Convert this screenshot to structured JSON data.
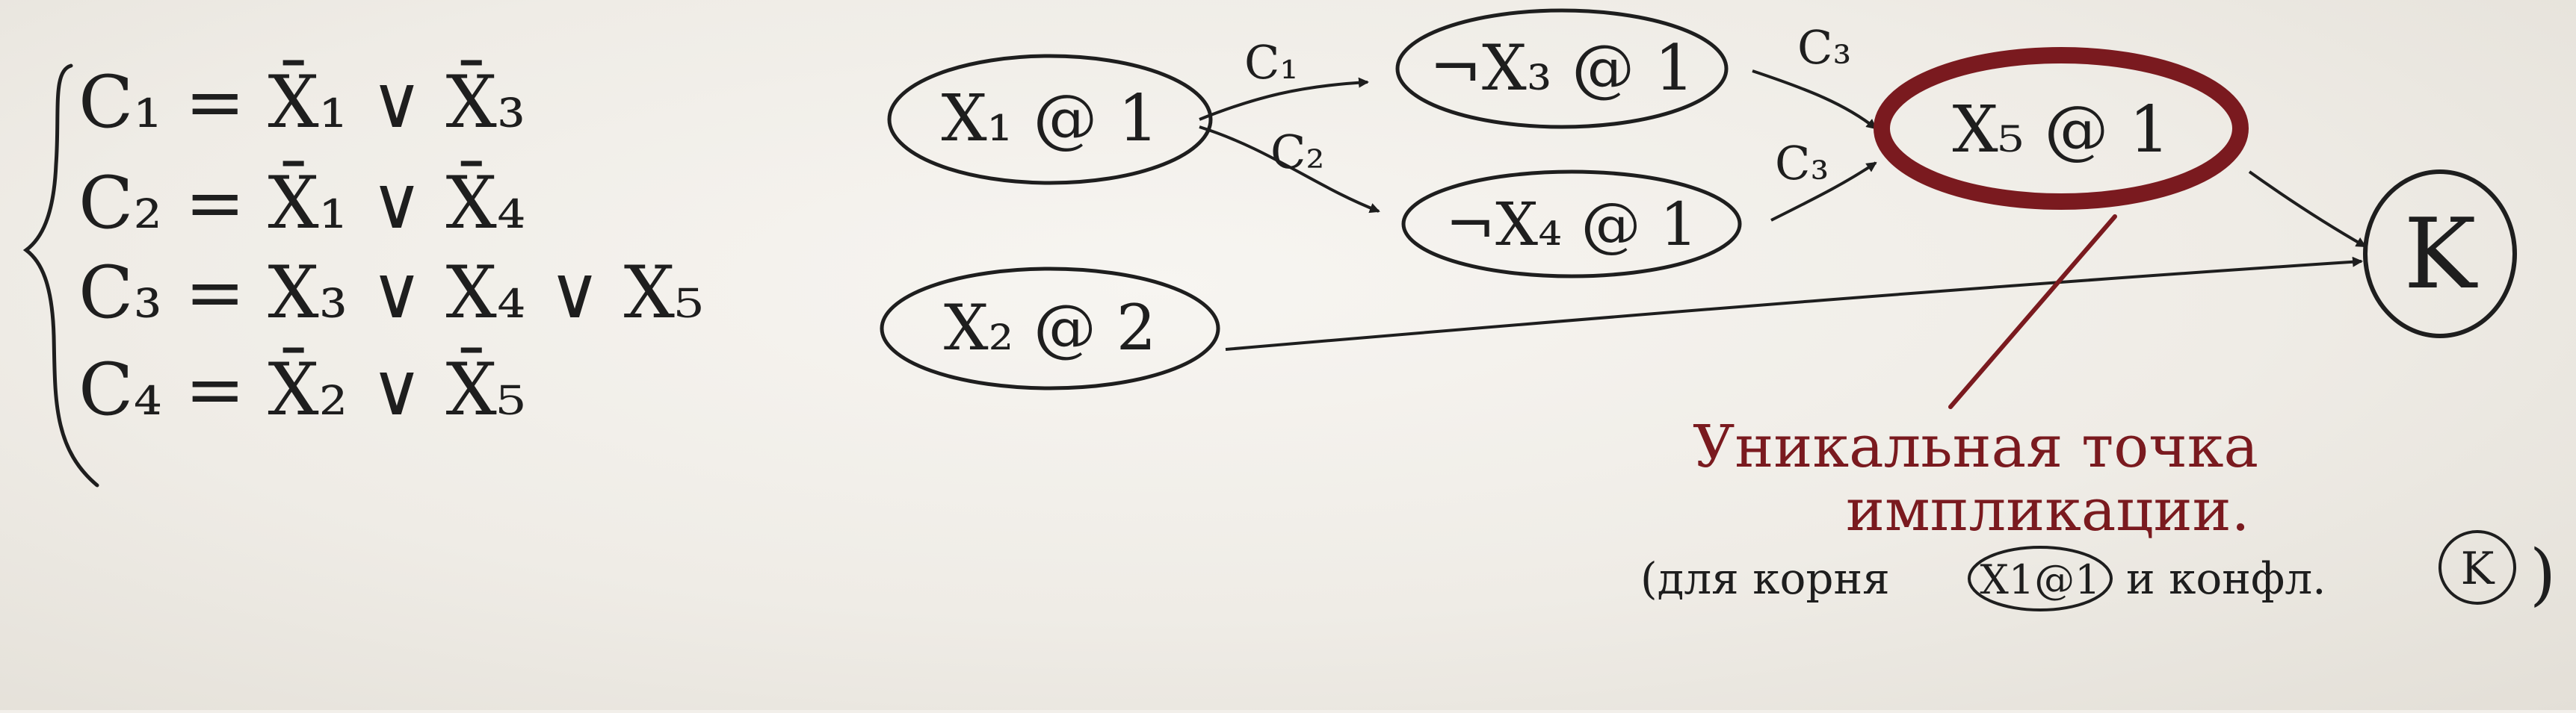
{
  "colors": {
    "paper": "#f2efea",
    "ink": "#1e1e1e",
    "highlight": "#7a1a1f"
  },
  "clauses": [
    {
      "name": "C1",
      "text": "C₁ = X̄₁ ∨ X̄₃"
    },
    {
      "name": "C2",
      "text": "C₂ = X̄₁ ∨ X̄₄"
    },
    {
      "name": "C3",
      "text": "C₃ = X₃ ∨ X₄ ∨ X₅"
    },
    {
      "name": "C4",
      "text": "C₄ = X̄₂ ∨ X̄₅"
    }
  ],
  "nodes": [
    {
      "id": "x1",
      "label": "X₁ @ 1"
    },
    {
      "id": "nx3",
      "label": "¬X₃ @ 1"
    },
    {
      "id": "nx4",
      "label": "¬X₄ @ 1"
    },
    {
      "id": "x5",
      "label": "X₅ @ 1"
    },
    {
      "id": "x2",
      "label": "X₂ @ 2"
    },
    {
      "id": "k",
      "label": "K"
    }
  ],
  "edges": [
    {
      "from": "x1",
      "to": "nx3",
      "label": "C₁"
    },
    {
      "from": "x1",
      "to": "nx4",
      "label": "C₂"
    },
    {
      "from": "nx3",
      "to": "x5",
      "label": "C₃"
    },
    {
      "from": "nx4",
      "to": "x5",
      "label": "C₃"
    },
    {
      "from": "x5",
      "to": "k",
      "label": ""
    },
    {
      "from": "x2",
      "to": "k",
      "label": ""
    }
  ],
  "annotation": {
    "line1": "Уникальная точка",
    "line2": "импликации.",
    "line3_prefix": "(для корня",
    "line3_root": "X1@1",
    "line3_middle": "и конфл.",
    "line3_conflict": "K",
    "line3_suffix": ")"
  }
}
